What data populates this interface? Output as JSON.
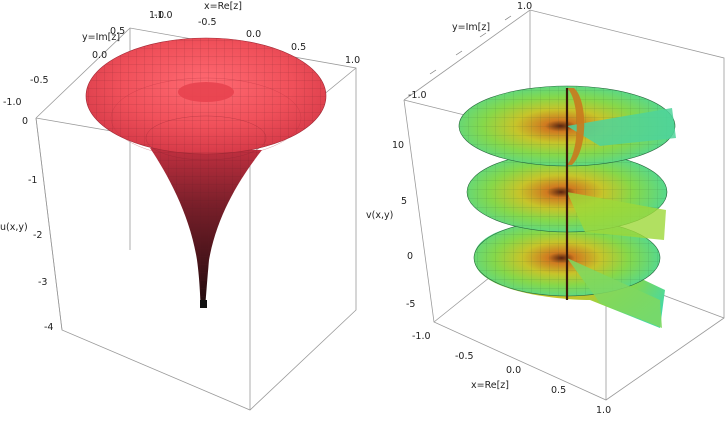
{
  "left_plot": {
    "x_label": "x=Re[z]",
    "y_label": "y=Im[z]",
    "z_label": "u(x,y)",
    "x_ticks": [
      "-1.0",
      "-0.5",
      "0.0",
      "0.5",
      "1.0"
    ],
    "y_ticks": [
      "-1.0",
      "-0.5",
      "0.0",
      "0.5",
      "1.0"
    ],
    "z_ticks": [
      "0",
      "-1",
      "-2",
      "-3",
      "-4"
    ]
  },
  "right_plot": {
    "x_label": "x=Re[z]",
    "y_label": "y=Im[z]",
    "z_label": "v(x,y)",
    "x_ticks": [
      "-1.0",
      "-0.5",
      "0.0",
      "0.5",
      "1.0"
    ],
    "y_ticks": [
      "-1.0",
      "1.0"
    ],
    "z_ticks": [
      "10",
      "5",
      "0",
      "-5"
    ]
  },
  "colors": {
    "funnel_top": "#f0505a",
    "funnel_throat": "#3a1016",
    "helix_outer": "#55dba0",
    "helix_mid": "#9ed83a",
    "helix_inner": "#d07a20",
    "box_line": "#9a9a9a"
  }
}
